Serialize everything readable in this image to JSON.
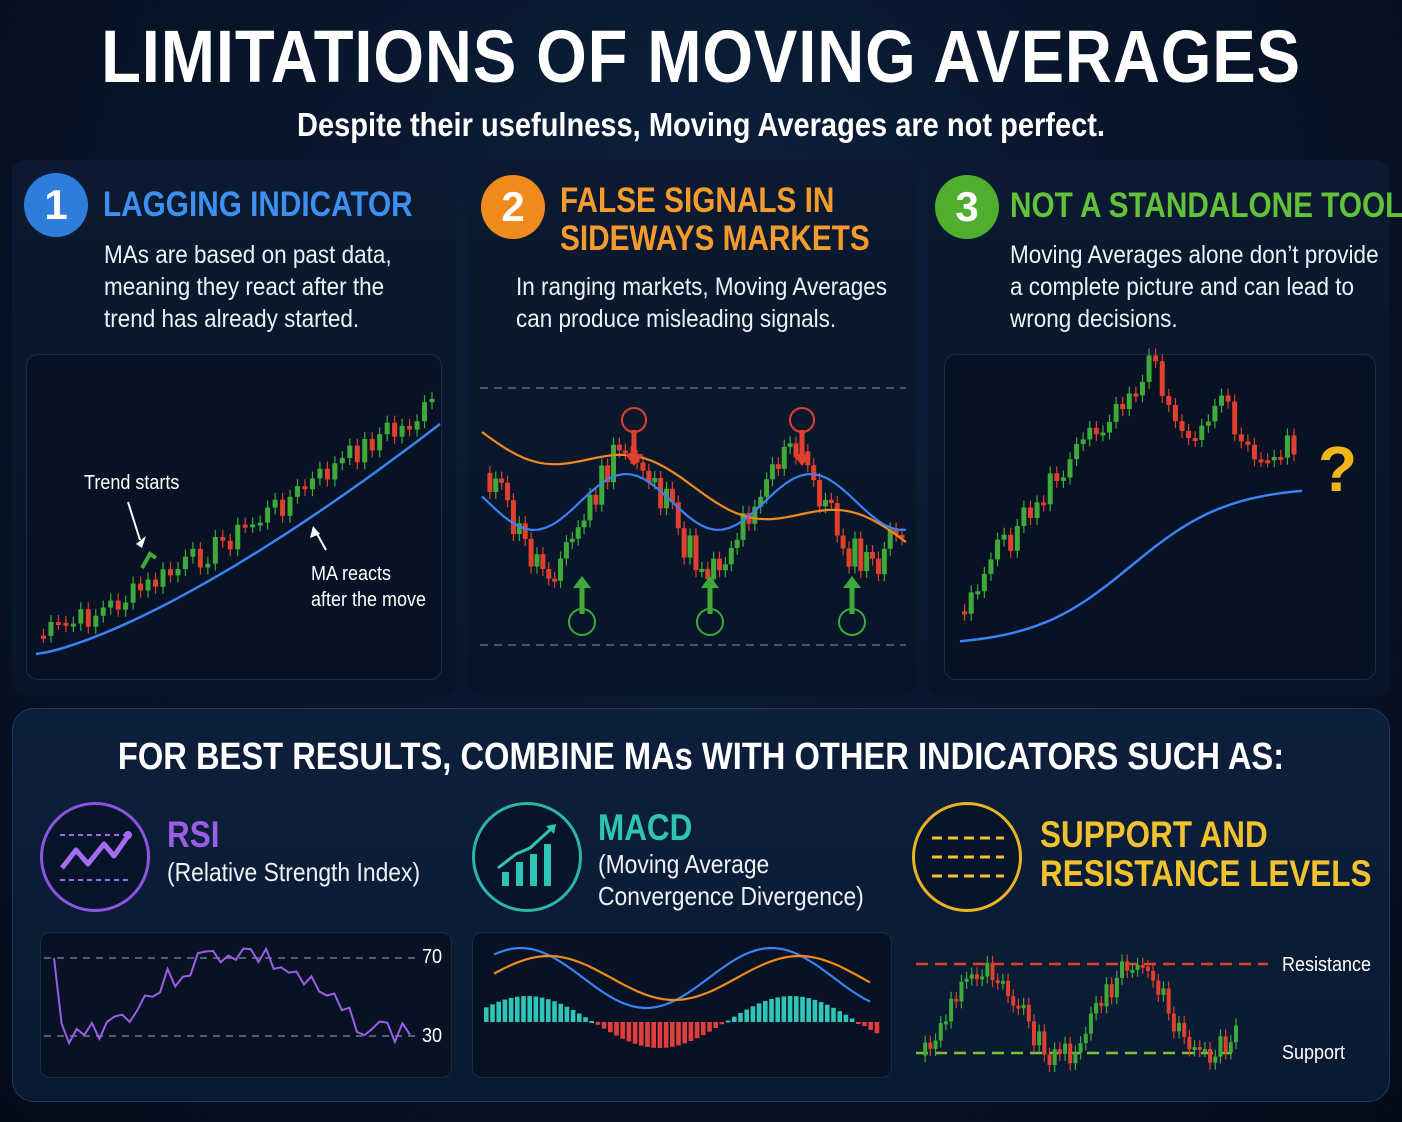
{
  "title": "LIMITATIONS OF MOVING AVERAGES",
  "subtitle": "Despite their usefulness, Moving Averages are not perfect.",
  "colors": {
    "blue": "#2f7ddb",
    "orange": "#f08a1c",
    "green": "#4fae2e",
    "purple": "#9b5de5",
    "teal": "#2ec4b6",
    "gold": "#f2c12e",
    "candle_up": "#3fa93a",
    "candle_down": "#e0402d",
    "ma_line": "#3b82f6"
  },
  "limitations": [
    {
      "number": "1",
      "heading": "LAGGING INDICATOR",
      "description": [
        "MAs are based on past data,",
        "meaning they react after the",
        "trend has already started."
      ],
      "annotations": {
        "trend_starts": "Trend starts",
        "ma_reacts_1": "MA reacts",
        "ma_reacts_2": "after the move"
      }
    },
    {
      "number": "2",
      "heading": [
        "FALSE SIGNALS IN",
        "SIDEWAYS MARKETS"
      ],
      "description": [
        "In ranging markets, Moving Averages",
        "can produce misleading signals."
      ]
    },
    {
      "number": "3",
      "heading": "NOT A STANDALONE TOOL",
      "description": [
        "Moving Averages alone don’t provide",
        "a complete picture and can lead to",
        "wrong decisions."
      ],
      "annotations": {
        "question": "?"
      }
    }
  ],
  "combine_title": "FOR BEST RESULTS, COMBINE MAs WITH OTHER INDICATORS SUCH AS:",
  "indicators": [
    {
      "name": "RSI",
      "subtitle": [
        "(Relative Strength Index)"
      ],
      "icon": "rsi-line-icon",
      "levels": {
        "upper": "70",
        "lower": "30"
      }
    },
    {
      "name": "MACD",
      "subtitle": [
        "(Moving Average",
        "Convergence Divergence)"
      ],
      "icon": "bar-growth-icon"
    },
    {
      "name": [
        "SUPPORT AND",
        "RESISTANCE LEVELS"
      ],
      "icon": "dashed-levels-icon",
      "levels": {
        "resistance": "Resistance",
        "support": "Support"
      }
    }
  ]
}
